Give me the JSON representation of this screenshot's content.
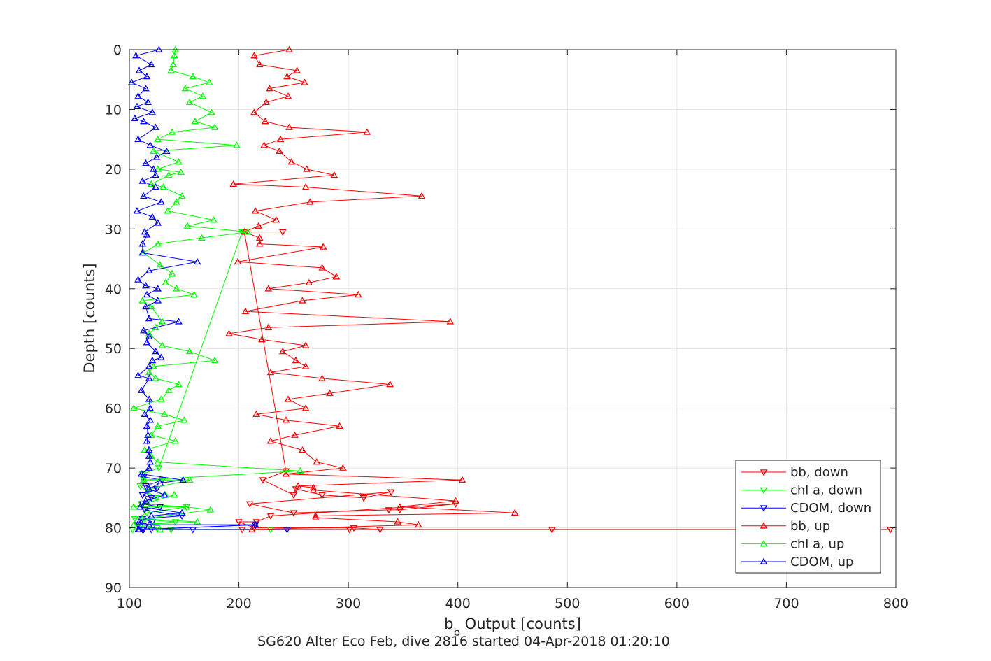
{
  "chart_data": {
    "type": "line",
    "xlabel_main": "b",
    "xlabel_sub": "b",
    "xlabel_rest": " Output [counts]",
    "ylabel": "Depth [counts]",
    "caption": "SG620 Alter Eco Feb, dive 2816 started 04-Apr-2018 01:20:10",
    "xlim": [
      100,
      800
    ],
    "ylim": [
      0,
      90
    ],
    "y_reversed": true,
    "grid": true,
    "legend_position": "bottom-right",
    "x_ticks": [
      "100",
      "200",
      "300",
      "400",
      "500",
      "600",
      "700",
      "800"
    ],
    "y_ticks": [
      "0",
      "10",
      "20",
      "30",
      "40",
      "50",
      "60",
      "70",
      "80",
      "90"
    ],
    "series": [
      {
        "name": "bb, down",
        "color": "#ff0000",
        "marker": "triangle-down",
        "points": [
          [
            240,
            30.5
          ],
          [
            205,
            30.5
          ],
          [
            243,
            70.5
          ],
          [
            222,
            72
          ],
          [
            250,
            74.5
          ],
          [
            252,
            73.5
          ],
          [
            276,
            74.5
          ],
          [
            314,
            75
          ],
          [
            339,
            74
          ],
          [
            210,
            76
          ],
          [
            250,
            77.5
          ],
          [
            337,
            77
          ],
          [
            347,
            77
          ],
          [
            398,
            76
          ],
          [
            229,
            78
          ],
          [
            216,
            79
          ],
          [
            200,
            79
          ],
          [
            214,
            80
          ],
          [
            305,
            80
          ],
          [
            329,
            80.3
          ],
          [
            301,
            80.3
          ],
          [
            486,
            80.3
          ],
          [
            795,
            80.3
          ],
          [
            203,
            80.3
          ]
        ]
      },
      {
        "name": "chl a, down",
        "color": "#00ff00",
        "marker": "triangle-down",
        "points": [
          [
            203,
            30.5
          ],
          [
            127,
            70
          ],
          [
            112,
            71
          ],
          [
            113,
            72
          ],
          [
            110,
            73
          ],
          [
            117,
            74
          ],
          [
            125,
            75
          ],
          [
            111,
            76
          ],
          [
            152,
            76.5
          ],
          [
            116,
            77.5
          ],
          [
            105,
            78.5
          ],
          [
            142,
            79
          ],
          [
            111,
            79.5
          ],
          [
            125,
            80
          ],
          [
            103,
            80.3
          ],
          [
            138,
            80.3
          ],
          [
            229,
            80.3
          ]
        ]
      },
      {
        "name": "CDOM, down",
        "color": "#0000ff",
        "marker": "triangle-down",
        "points": [
          [
            113,
            71.5
          ],
          [
            130,
            72
          ],
          [
            115,
            73
          ],
          [
            125,
            73.5
          ],
          [
            112,
            74.5
          ],
          [
            120,
            75
          ],
          [
            112,
            76
          ],
          [
            128,
            76.5
          ],
          [
            114,
            77
          ],
          [
            148,
            78
          ],
          [
            112,
            78.5
          ],
          [
            121,
            79
          ],
          [
            108,
            79.5
          ],
          [
            215,
            79.5
          ],
          [
            112,
            80.3
          ],
          [
            120,
            80.3
          ],
          [
            158,
            80.3
          ],
          [
            244,
            80.3
          ],
          [
            113,
            80.3
          ]
        ]
      },
      {
        "name": "bb, up",
        "color": "#ff0000",
        "marker": "triangle-up",
        "points": [
          [
            246,
            0
          ],
          [
            214,
            1
          ],
          [
            219,
            2.5
          ],
          [
            253,
            3.5
          ],
          [
            244,
            4.5
          ],
          [
            260,
            5.5
          ],
          [
            228,
            6.5
          ],
          [
            245,
            7.8
          ],
          [
            225,
            8.8
          ],
          [
            214,
            10.5
          ],
          [
            224,
            12
          ],
          [
            246,
            13
          ],
          [
            317,
            13.8
          ],
          [
            238,
            15
          ],
          [
            223,
            16
          ],
          [
            237,
            17
          ],
          [
            248,
            18.8
          ],
          [
            262,
            20
          ],
          [
            287,
            21
          ],
          [
            195,
            22.5
          ],
          [
            261,
            23
          ],
          [
            367,
            24.5
          ],
          [
            265,
            25.5
          ],
          [
            215,
            27
          ],
          [
            234,
            28.5
          ],
          [
            218,
            29.5
          ],
          [
            205,
            30.5
          ],
          [
            219,
            31.5
          ],
          [
            219,
            32.5
          ],
          [
            277,
            33
          ],
          [
            199,
            35.5
          ],
          [
            276,
            36.5
          ],
          [
            289,
            38
          ],
          [
            264,
            39
          ],
          [
            227,
            40
          ],
          [
            309,
            41
          ],
          [
            258,
            42
          ],
          [
            206,
            43.8
          ],
          [
            393,
            45.5
          ],
          [
            227,
            46.5
          ],
          [
            191,
            47.5
          ],
          [
            221,
            48.5
          ],
          [
            261,
            49.5
          ],
          [
            240,
            50.5
          ],
          [
            252,
            52
          ],
          [
            261,
            53
          ],
          [
            229,
            54
          ],
          [
            276,
            55
          ],
          [
            338,
            56
          ],
          [
            283,
            57.5
          ],
          [
            245,
            58.5
          ],
          [
            261,
            60
          ],
          [
            216,
            61
          ],
          [
            243,
            62
          ],
          [
            292,
            63
          ],
          [
            251,
            64.5
          ],
          [
            229,
            65.5
          ],
          [
            258,
            67
          ],
          [
            271,
            69
          ],
          [
            295,
            70
          ],
          [
            243,
            71
          ],
          [
            404,
            72
          ],
          [
            254,
            73
          ],
          [
            268,
            73.3
          ],
          [
            268,
            73.7
          ],
          [
            398,
            75.5
          ],
          [
            347,
            76.5
          ],
          [
            452,
            77.5
          ],
          [
            270,
            78
          ],
          [
            270,
            78.3
          ],
          [
            345,
            79
          ],
          [
            364,
            79.5
          ],
          [
            212,
            80.3
          ]
        ]
      },
      {
        "name": "chl a, up",
        "color": "#00ff00",
        "marker": "triangle-up",
        "points": [
          [
            142,
            0
          ],
          [
            141,
            1
          ],
          [
            140,
            2.5
          ],
          [
            138,
            3.5
          ],
          [
            158,
            4.5
          ],
          [
            173,
            5.5
          ],
          [
            151,
            6.5
          ],
          [
            167,
            7.8
          ],
          [
            155,
            8.8
          ],
          [
            175,
            10.5
          ],
          [
            160,
            12
          ],
          [
            178,
            13
          ],
          [
            139,
            13.8
          ],
          [
            126,
            15
          ],
          [
            198,
            16
          ],
          [
            122,
            17
          ],
          [
            145,
            18.8
          ],
          [
            126,
            20
          ],
          [
            147,
            20.5
          ],
          [
            136,
            21
          ],
          [
            120,
            22.5
          ],
          [
            131,
            23
          ],
          [
            148,
            24.5
          ],
          [
            143,
            25.5
          ],
          [
            135,
            27
          ],
          [
            177,
            28.5
          ],
          [
            153,
            29.5
          ],
          [
            208,
            30.5
          ],
          [
            166,
            31.5
          ],
          [
            126,
            32.5
          ],
          [
            113,
            34
          ],
          [
            128,
            36
          ],
          [
            139,
            37.5
          ],
          [
            133,
            39
          ],
          [
            143,
            40
          ],
          [
            159,
            41
          ],
          [
            112,
            42
          ],
          [
            120,
            43
          ],
          [
            130,
            45.5
          ],
          [
            124,
            46.5
          ],
          [
            118,
            47.5
          ],
          [
            130,
            49.5
          ],
          [
            155,
            50.5
          ],
          [
            178,
            52
          ],
          [
            122,
            53
          ],
          [
            118,
            54
          ],
          [
            124,
            55
          ],
          [
            145,
            56
          ],
          [
            136,
            57
          ],
          [
            129,
            58.5
          ],
          [
            104,
            60
          ],
          [
            132,
            61
          ],
          [
            150,
            62
          ],
          [
            126,
            63
          ],
          [
            120,
            64.5
          ],
          [
            142,
            65.5
          ],
          [
            114,
            67
          ],
          [
            120,
            68
          ],
          [
            126,
            69
          ],
          [
            256,
            70.5
          ],
          [
            113,
            72
          ],
          [
            155,
            72
          ],
          [
            118,
            73.5
          ],
          [
            133,
            74.5
          ],
          [
            141,
            74.5
          ],
          [
            104,
            76.5
          ],
          [
            152,
            76.5
          ],
          [
            174,
            77
          ],
          [
            112,
            78.5
          ],
          [
            162,
            79
          ],
          [
            104,
            79.5
          ],
          [
            128,
            80.3
          ]
        ]
      },
      {
        "name": "CDOM, up",
        "color": "#0000ff",
        "marker": "triangle-up",
        "points": [
          [
            127,
            0
          ],
          [
            106,
            1
          ],
          [
            120,
            2.5
          ],
          [
            109,
            3.5
          ],
          [
            116,
            4.5
          ],
          [
            102,
            5.5
          ],
          [
            115,
            6.5
          ],
          [
            108,
            7.8
          ],
          [
            117,
            8.8
          ],
          [
            107,
            9.5
          ],
          [
            121,
            10.5
          ],
          [
            105,
            11.5
          ],
          [
            113,
            12
          ],
          [
            124,
            13
          ],
          [
            108,
            15
          ],
          [
            119,
            16
          ],
          [
            134,
            17
          ],
          [
            125,
            18
          ],
          [
            115,
            19
          ],
          [
            122,
            20
          ],
          [
            124,
            21
          ],
          [
            112,
            22
          ],
          [
            124,
            23
          ],
          [
            113,
            24.5
          ],
          [
            129,
            25.5
          ],
          [
            107,
            27
          ],
          [
            121,
            28
          ],
          [
            126,
            29
          ],
          [
            114,
            30.5
          ],
          [
            116,
            31
          ],
          [
            112,
            32.5
          ],
          [
            112,
            34
          ],
          [
            162,
            35.5
          ],
          [
            118,
            37
          ],
          [
            108,
            38.5
          ],
          [
            115,
            39.5
          ],
          [
            126,
            40
          ],
          [
            116,
            41
          ],
          [
            126,
            42
          ],
          [
            115,
            43
          ],
          [
            118,
            45
          ],
          [
            145,
            45.5
          ],
          [
            113,
            47
          ],
          [
            118,
            48
          ],
          [
            116,
            49
          ],
          [
            124,
            50.5
          ],
          [
            129,
            51.5
          ],
          [
            121,
            52
          ],
          [
            118,
            53
          ],
          [
            108,
            54.5
          ],
          [
            118,
            55
          ],
          [
            111,
            57
          ],
          [
            118,
            58.5
          ],
          [
            119,
            60
          ],
          [
            114,
            61
          ],
          [
            119,
            62
          ],
          [
            116,
            63
          ],
          [
            117,
            64.5
          ],
          [
            116,
            65.5
          ],
          [
            118,
            67
          ],
          [
            118,
            68
          ],
          [
            119,
            69
          ],
          [
            118,
            70
          ],
          [
            111,
            71
          ],
          [
            149,
            72
          ],
          [
            128,
            72.5
          ],
          [
            118,
            73.5
          ],
          [
            132,
            74.5
          ],
          [
            115,
            75.5
          ],
          [
            110,
            76.5
          ],
          [
            148,
            77.5
          ],
          [
            120,
            78
          ],
          [
            109,
            79
          ],
          [
            118,
            79.5
          ],
          [
            215,
            79.5
          ],
          [
            108,
            80.3
          ],
          [
            109,
            80.3
          ]
        ]
      }
    ]
  }
}
